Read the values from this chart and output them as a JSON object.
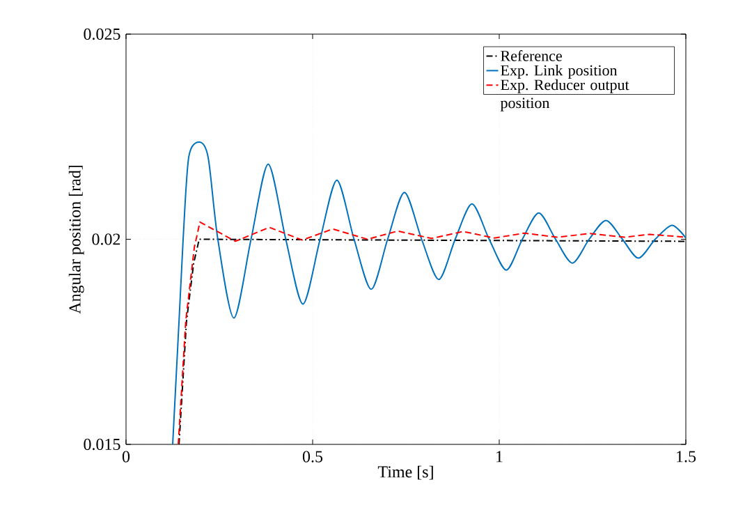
{
  "chart_data": {
    "type": "line",
    "xlabel": "Time [s]",
    "ylabel": "Angular position [rad]",
    "xlim": [
      0,
      1.5
    ],
    "ylim": [
      0.015,
      0.025
    ],
    "xticks": [
      0,
      0.5,
      1,
      1.5
    ],
    "yticks": [
      0.015,
      0.02,
      0.025
    ],
    "grid": true,
    "legend": "top right",
    "marker": "none",
    "series": [
      {
        "name": "Reference",
        "color": "#000000",
        "line_style": "dashdot",
        "x": [
          0.142,
          0.162,
          0.181,
          0.196,
          1.5
        ],
        "values": [
          0.015,
          0.018,
          0.0194,
          0.02,
          0.01995
        ]
      },
      {
        "name": "Exp. Link position",
        "color": "#0072bd",
        "line_style": "solid",
        "x": [
          0.125,
          0.142,
          0.153,
          0.168,
          0.196,
          0.22,
          0.246,
          0.289,
          0.335,
          0.381,
          0.428,
          0.474,
          0.52,
          0.565,
          0.611,
          0.657,
          0.701,
          0.746,
          0.792,
          0.838,
          0.882,
          0.927,
          0.973,
          1.019,
          1.062,
          1.106,
          1.151,
          1.196,
          1.241,
          1.286,
          1.33,
          1.373,
          1.418,
          1.463,
          1.5
        ],
        "values": [
          0.015,
          0.018,
          0.02,
          0.022,
          0.02237,
          0.022,
          0.02,
          0.01808,
          0.02,
          0.02183,
          0.02,
          0.01842,
          0.02,
          0.02144,
          0.02,
          0.01878,
          0.02,
          0.02114,
          0.02,
          0.01902,
          0.02,
          0.02086,
          0.02,
          0.01925,
          0.02,
          0.02064,
          0.02,
          0.01942,
          0.02,
          0.02046,
          0.02,
          0.01954,
          0.02,
          0.02034,
          0.02003
        ]
      },
      {
        "name": "Exp. Reducer output position",
        "color": "#ff0000",
        "line_style": "dashed",
        "x": [
          0.14,
          0.16,
          0.183,
          0.198,
          0.293,
          0.384,
          0.472,
          0.554,
          0.647,
          0.728,
          0.819,
          0.903,
          0.987,
          1.067,
          1.155,
          1.243,
          1.336,
          1.403,
          1.459,
          1.5
        ],
        "values": [
          0.015,
          0.018,
          0.0198,
          0.02042,
          0.01995,
          0.02029,
          0.01998,
          0.02025,
          0.02,
          0.0202,
          0.02002,
          0.02019,
          0.02003,
          0.02015,
          0.02005,
          0.02014,
          0.02005,
          0.02012,
          0.02008,
          0.02005
        ]
      }
    ]
  }
}
